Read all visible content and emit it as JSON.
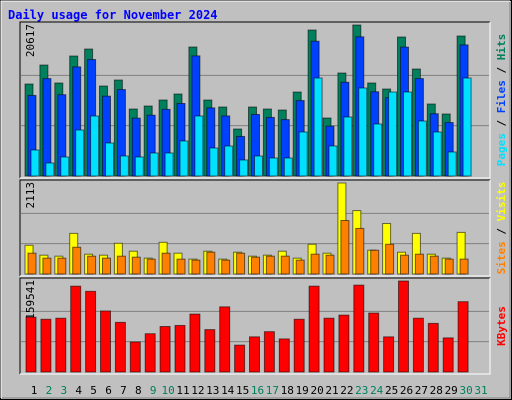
{
  "chart_data": [
    {
      "type": "bar",
      "title": "Daily usage for November 2024",
      "legend_separator": "/",
      "ylim": [
        0,
        20617
      ],
      "yticks": [
        20617
      ],
      "series": [
        {
          "name": "Hits",
          "color": "#00805c",
          "values": [
            12558,
            15152,
            12695,
            16380,
            17336,
            12285,
            13104,
            9146,
            9555,
            10374,
            11193,
            17609,
            10374,
            9419,
            6416,
            9419,
            9146,
            9009,
            11466,
            19929,
            7917,
            14060,
            20617,
            12695,
            11876,
            18974,
            14606,
            9828,
            8463,
            19110,
            0
          ]
        },
        {
          "name": "Files",
          "color": "#0040ff",
          "values": [
            11000,
            13300,
            11100,
            14900,
            15900,
            10900,
            11800,
            7900,
            8300,
            9100,
            9900,
            16400,
            9300,
            8200,
            5400,
            8400,
            8000,
            7700,
            10300,
            18400,
            6800,
            12800,
            19000,
            11500,
            10700,
            17600,
            13300,
            8500,
            7300,
            17900,
            0
          ]
        },
        {
          "name": "Pages",
          "color": "#00e0ff",
          "values": [
            3549,
            1775,
            2594,
            6279,
            8190,
            4505,
            2730,
            2594,
            3140,
            3140,
            4778,
            8190,
            3822,
            4095,
            2184,
            2730,
            2457,
            2457,
            6006,
            13377,
            4095,
            8054,
            12012,
            7098,
            11466,
            11466,
            7508,
            6006,
            3276,
            13377,
            0
          ]
        }
      ]
    },
    {
      "type": "bar",
      "legend_separator": "/",
      "ylim": [
        0,
        2113
      ],
      "yticks": [
        2113
      ],
      "series": [
        {
          "name": "Visits",
          "color": "#ffff00",
          "values": [
            667,
            437,
            414,
            943,
            460,
            437,
            713,
            529,
            368,
            736,
            483,
            345,
            529,
            345,
            506,
            414,
            437,
            529,
            368,
            690,
            483,
            2113,
            1472,
            552,
            1173,
            506,
            943,
            460,
            368,
            966,
            0
          ]
        },
        {
          "name": "Sites",
          "color": "#ff8000",
          "values": [
            483,
            368,
            368,
            621,
            414,
            368,
            414,
            391,
            345,
            483,
            345,
            322,
            506,
            322,
            483,
            391,
            414,
            414,
            322,
            460,
            437,
            1242,
            1058,
            552,
            690,
            437,
            460,
            414,
            345,
            345,
            0
          ]
        }
      ]
    },
    {
      "type": "bar",
      "ylim": [
        0,
        1159541
      ],
      "yticks": [
        1159541
      ],
      "categories": [
        "1",
        "2",
        "3",
        "4",
        "5",
        "6",
        "7",
        "8",
        "9",
        "10",
        "11",
        "12",
        "13",
        "14",
        "15",
        "16",
        "17",
        "18",
        "19",
        "20",
        "21",
        "22",
        "23",
        "24",
        "25",
        "26",
        "27",
        "28",
        "29",
        "30",
        "31"
      ],
      "category_colors": [
        "#000000",
        "#00805c",
        "#00805c",
        "#000000",
        "#000000",
        "#000000",
        "#000000",
        "#000000",
        "#00805c",
        "#00805c",
        "#000000",
        "#000000",
        "#000000",
        "#000000",
        "#000000",
        "#00805c",
        "#00805c",
        "#000000",
        "#000000",
        "#000000",
        "#000000",
        "#000000",
        "#00805c",
        "#00805c",
        "#000000",
        "#000000",
        "#000000",
        "#000000",
        "#000000",
        "#00805c",
        "#00805c"
      ],
      "series": [
        {
          "name": "KBytes",
          "color": "#ff0000",
          "values": [
            698381,
            672027,
            685204,
            1093691,
            1027806,
            777443,
            632496,
            382133,
            487549,
            579788,
            592965,
            737912,
            540257,
            830151,
            342602,
            448018,
            513903,
            421664,
            672027,
            1093691,
            685204,
            724735,
            1106868,
            751089,
            448018,
            1159541,
            685204,
            619319,
            434841,
            896036,
            0
          ]
        }
      ]
    }
  ]
}
